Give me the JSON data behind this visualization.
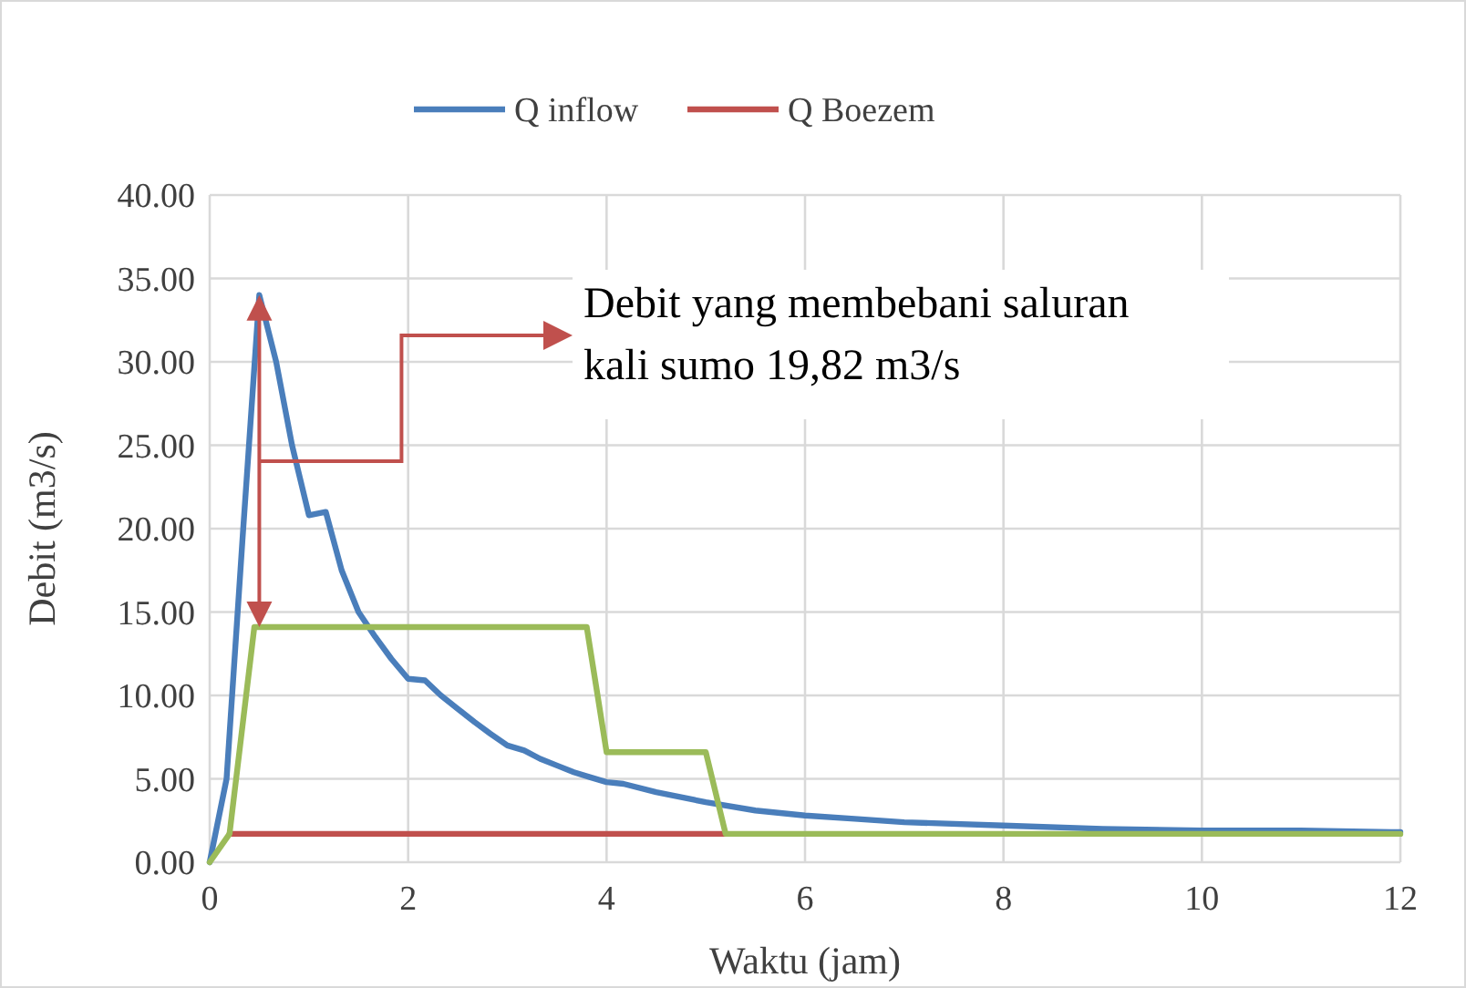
{
  "chart_data": {
    "type": "line",
    "xlabel": "Waktu (jam)",
    "ylabel": "Debit (m3/s)",
    "annotations": [
      "Debit yang membebani saluran kali sumo 19,82 m3/s"
    ],
    "series": [
      {
        "name": "Q inflow",
        "color": "#4a7ebb",
        "x": [
          0,
          0.17,
          0.33,
          0.5,
          0.67,
          0.83,
          1.0,
          1.17,
          1.33,
          1.5,
          1.67,
          1.83,
          2.0,
          2.17,
          2.33,
          2.5,
          2.67,
          2.83,
          3.0,
          3.17,
          3.33,
          3.5,
          3.67,
          3.83,
          4.0,
          4.17,
          4.5,
          5.0,
          5.5,
          6.0,
          6.5,
          7.0,
          8.0,
          9.0,
          10.0,
          11.0,
          12.0
        ],
        "values": [
          0,
          5.0,
          19.3,
          34.0,
          30.0,
          25.0,
          20.8,
          21.0,
          17.5,
          15.0,
          13.5,
          12.2,
          11.0,
          10.9,
          10.0,
          9.2,
          8.4,
          7.7,
          7.0,
          6.7,
          6.2,
          5.8,
          5.4,
          5.1,
          4.8,
          4.7,
          4.2,
          3.6,
          3.1,
          2.8,
          2.6,
          2.4,
          2.2,
          2.0,
          1.9,
          1.9,
          1.8
        ]
      },
      {
        "name": "Q Boezem",
        "color": "#c0504d",
        "x": [
          0.2,
          5.2
        ],
        "values": [
          1.7,
          1.7
        ]
      },
      {
        "color": "#9bbb59",
        "x": [
          0,
          0.2,
          0.45,
          3.8,
          4.0,
          5.0,
          5.2,
          12
        ],
        "values": [
          0,
          1.7,
          14.1,
          14.1,
          6.6,
          6.6,
          1.7,
          1.7
        ]
      }
    ],
    "xlim": [
      0,
      12
    ],
    "xticks": [
      0,
      2,
      4,
      6,
      8,
      10,
      12
    ],
    "ylim": [
      0,
      40
    ],
    "yticks": [
      {
        "value": 0,
        "label": "0.00"
      },
      {
        "value": 5,
        "label": "5.00"
      },
      {
        "value": 10,
        "label": "10.00"
      },
      {
        "value": 15,
        "label": "15.00"
      },
      {
        "value": 20,
        "label": "20.00"
      },
      {
        "value": 25,
        "label": "25.00"
      },
      {
        "value": 30,
        "label": "30.00"
      },
      {
        "value": 35,
        "label": "35.00"
      },
      {
        "value": 40,
        "label": "40.00"
      }
    ],
    "grid": true,
    "legend": "top",
    "marker": "none",
    "line_style": "solid"
  }
}
